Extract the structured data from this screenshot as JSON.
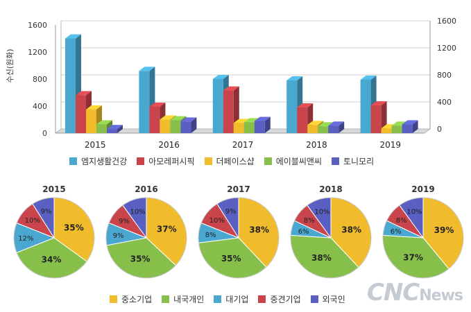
{
  "chart_data": [
    {
      "type": "bar",
      "categories": [
        "2015",
        "2016",
        "2017",
        "2018",
        "2019"
      ],
      "ylabel": "수신(원화)",
      "ylim": [
        0,
        1600
      ],
      "yticks": [
        "0",
        "400",
        "800",
        "1200",
        "1600"
      ],
      "y2ticks": [
        "0",
        "400",
        "800",
        "1200",
        "1600"
      ],
      "series": [
        {
          "name": "엠지생활건강",
          "color": "#4aa8d0",
          "values": [
            1400,
            920,
            800,
            780,
            790
          ]
        },
        {
          "name": "아모레퍼시픽",
          "color": "#c9444b",
          "values": [
            560,
            390,
            630,
            380,
            410
          ]
        },
        {
          "name": "더페이스샵",
          "color": "#f0bc2c",
          "values": [
            350,
            200,
            150,
            120,
            70
          ]
        },
        {
          "name": "에이블씨앤씨",
          "color": "#86c04a",
          "values": [
            130,
            190,
            160,
            100,
            110
          ]
        },
        {
          "name": "토니모리",
          "color": "#5a5fc2",
          "values": [
            60,
            170,
            180,
            110,
            130
          ]
        }
      ],
      "grid": true
    },
    {
      "type": "pie",
      "years": [
        "2015",
        "2016",
        "2017",
        "2018",
        "2019"
      ],
      "categories": [
        {
          "name": "중소기업",
          "color": "#f0bc2c"
        },
        {
          "name": "내국개인",
          "color": "#86c04a"
        },
        {
          "name": "대기업",
          "color": "#4aa8d0"
        },
        {
          "name": "중견기업",
          "color": "#c9444b"
        },
        {
          "name": "외국인",
          "color": "#5a5fc2"
        }
      ],
      "values": [
        [
          35,
          34,
          12,
          10,
          9
        ],
        [
          37,
          35,
          9,
          9,
          10
        ],
        [
          38,
          35,
          8,
          10,
          9
        ],
        [
          38,
          38,
          6,
          8,
          10
        ],
        [
          39,
          37,
          6,
          8,
          10
        ]
      ],
      "labels": [
        [
          "35%",
          "34%",
          "12%",
          "10%",
          "9%"
        ],
        [
          "37%",
          "35%",
          "9%",
          "9%",
          "10%"
        ],
        [
          "38%",
          "35%",
          "8%",
          "10%",
          "9%"
        ],
        [
          "38%",
          "38%",
          "6%",
          "8%",
          "10%"
        ],
        [
          "39%",
          "37%",
          "6%",
          "8%",
          "10%"
        ]
      ]
    }
  ],
  "watermark": {
    "main": "CNC",
    "suffix": "News"
  }
}
